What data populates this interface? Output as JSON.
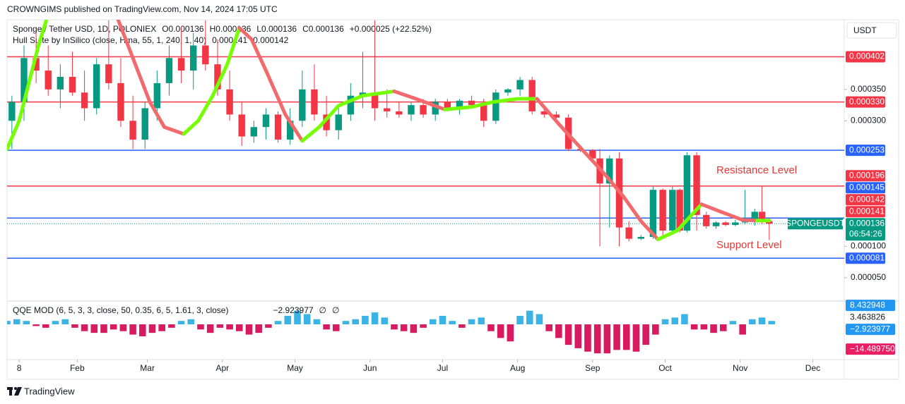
{
  "header": {
    "published": "CROWNGIMS published on TradingView.com, Nov 14, 2024 17:05 UTC",
    "footer": "TradingView"
  },
  "chart_data": {
    "type": "candlestick",
    "title": "Sponge / Tether USD, 1D, POLONIEX",
    "ohlc_text": [
      "O0.000136",
      "H0.000136",
      "L0.000136",
      "C0.000136",
      "+0.000025 (+22.52%)"
    ],
    "indicator": "Hull Suite by InSilico (close, Hma, 55, 1, 240, 1, 40)",
    "indicator_values": [
      "0.000141",
      "0.000142"
    ],
    "currency": "USDT",
    "symbol_badge": "SPONGEUSDT",
    "countdown": "06:54:26",
    "annotations": [
      "Resistance Level",
      "Support Level"
    ],
    "up_color": "#089981",
    "down_color": "#f23645",
    "xlim": [
      3,
      349
    ],
    "xticks": [
      {
        "value": 8,
        "label": "8"
      },
      {
        "value": 32,
        "label": "Feb"
      },
      {
        "value": 61,
        "label": "Mar"
      },
      {
        "value": 92,
        "label": "Apr"
      },
      {
        "value": 122,
        "label": "May"
      },
      {
        "value": 153,
        "label": "Jun"
      },
      {
        "value": 183,
        "label": "Jul"
      },
      {
        "value": 214,
        "label": "Aug"
      },
      {
        "value": 245,
        "label": "Sep"
      },
      {
        "value": 275,
        "label": "Oct"
      },
      {
        "value": 306,
        "label": "Nov"
      },
      {
        "value": 336,
        "label": "Dec"
      }
    ],
    "ylim": [
      1.5e-05,
      0.000461
    ],
    "yticks": [
      {
        "value": 5e-05,
        "label": "0.000050"
      },
      {
        "value": 0.0001,
        "label": "0.000100"
      },
      {
        "value": 0.0003,
        "label": "0.000300"
      },
      {
        "value": 0.00035,
        "label": "0.000350"
      }
    ],
    "x": [
      5,
      10,
      15,
      20,
      25,
      30,
      35,
      40,
      45,
      50,
      55,
      60,
      65,
      70,
      75,
      80,
      85,
      90,
      95,
      100,
      105,
      110,
      115,
      120,
      125,
      130,
      135,
      140,
      145,
      150,
      155,
      160,
      165,
      170,
      175,
      180,
      185,
      190,
      195,
      200,
      205,
      210,
      215,
      220,
      225,
      230,
      235,
      240,
      245,
      248,
      252,
      256,
      260,
      265,
      270,
      274,
      278,
      281,
      284,
      288,
      292,
      296,
      300,
      304,
      308,
      312,
      315,
      318
    ],
    "open": [
      0.0003,
      0.00033,
      0.0004,
      0.00038,
      0.00035,
      0.00037,
      0.000345,
      0.00032,
      0.00039,
      0.00036,
      0.0003,
      0.00027,
      0.00032,
      0.00036,
      0.0004,
      0.00038,
      0.00042,
      0.00039,
      0.00035,
      0.00031,
      0.000275,
      0.00029,
      0.00031,
      0.00027,
      0.0003,
      0.00035,
      0.00031,
      0.000285,
      0.00031,
      0.00034,
      0.000345,
      0.00032,
      0.000315,
      0.00031,
      0.000325,
      0.00031,
      0.00033,
      0.000318,
      0.000332,
      0.000325,
      0.0003,
      0.000345,
      0.00035,
      0.000365,
      0.000315,
      0.00031,
      0.000305,
      0.000255,
      0.000253,
      0.00024,
      0.0002,
      0.00024,
      0.00013,
      0.000112,
      0.000115,
      0.00019,
      0.000125,
      0.00019,
      0.000125,
      0.000245,
      0.00015,
      0.000132,
      0.000138,
      0.000134,
      0.000138,
      0.00014,
      0.000155,
      0.00014
    ],
    "high": [
      0.00034,
      0.00042,
      0.00044,
      0.00042,
      0.00039,
      0.00041,
      0.00038,
      0.0004,
      0.00046,
      0.0004,
      0.00034,
      0.00033,
      0.00038,
      0.00042,
      0.00045,
      0.00044,
      0.00046,
      0.00043,
      0.00038,
      0.00033,
      0.0003,
      0.00032,
      0.000315,
      0.00032,
      0.00038,
      0.00039,
      0.00034,
      0.00032,
      0.00036,
      0.00041,
      0.00046,
      0.00035,
      0.00033,
      0.00033,
      0.000335,
      0.000335,
      0.000335,
      0.000335,
      0.00034,
      0.000335,
      0.00035,
      0.000352,
      0.00037,
      0.00037,
      0.00032,
      0.000315,
      0.00031,
      0.000258,
      0.000255,
      0.000255,
      0.000245,
      0.00025,
      0.00014,
      0.000118,
      0.000195,
      0.000192,
      0.000195,
      0.000192,
      0.00025,
      0.00025,
      0.000155,
      0.00014,
      0.00014,
      0.000142,
      0.00019,
      0.00016,
      0.000195,
      0.000145
    ],
    "low": [
      0.000255,
      0.0003,
      0.00036,
      0.00034,
      0.00032,
      0.00034,
      0.0003,
      0.00031,
      0.00035,
      0.00029,
      0.000255,
      0.000255,
      0.0003,
      0.00034,
      0.00036,
      0.00035,
      0.00038,
      0.00034,
      0.0003,
      0.00026,
      0.000265,
      0.00027,
      0.000265,
      0.000262,
      0.00029,
      0.0003,
      0.000275,
      0.00027,
      0.0003,
      0.00032,
      0.0003,
      0.000305,
      0.000305,
      0.0003,
      0.000305,
      0.0003,
      0.000315,
      0.00031,
      0.00032,
      0.00029,
      0.000295,
      0.00034,
      0.00034,
      0.00031,
      0.000305,
      0.0003,
      0.000252,
      0.00025,
      0.000235,
      0.0001,
      0.00013,
      0.0001,
      0.000108,
      0.00011,
      0.000112,
      0.000115,
      0.000122,
      0.000122,
      0.000122,
      0.000125,
      0.000128,
      0.000128,
      0.000132,
      0.000132,
      0.000135,
      0.000133,
      0.000135,
      0.00011
    ],
    "close": [
      0.00033,
      0.0004,
      0.00038,
      0.00035,
      0.00037,
      0.000345,
      0.00032,
      0.00039,
      0.00036,
      0.0003,
      0.00027,
      0.00032,
      0.00036,
      0.0004,
      0.00038,
      0.00042,
      0.00039,
      0.00035,
      0.00031,
      0.000275,
      0.00029,
      0.00031,
      0.00027,
      0.0003,
      0.00035,
      0.00031,
      0.000285,
      0.00031,
      0.00034,
      0.000345,
      0.00032,
      0.000315,
      0.00031,
      0.000325,
      0.00031,
      0.00033,
      0.000318,
      0.000332,
      0.000325,
      0.0003,
      0.000345,
      0.00035,
      0.000365,
      0.000315,
      0.00031,
      0.000305,
      0.000255,
      0.000253,
      0.00024,
      0.0002,
      0.00024,
      0.00013,
      0.000112,
      0.000115,
      0.00019,
      0.000125,
      0.00019,
      0.000125,
      0.000245,
      0.00015,
      0.000132,
      0.000138,
      0.000134,
      0.000138,
      0.00014,
      0.000155,
      0.00014,
      0.000136
    ],
    "hull": {
      "name": "Hull Suite",
      "rise_color": "#76ff03",
      "fall_color": "#f26a6c",
      "x": [
        3,
        8,
        12,
        16,
        20,
        34,
        48,
        55,
        62,
        68,
        76,
        82,
        88,
        94,
        99,
        104,
        110,
        118,
        125,
        132,
        140,
        150,
        163,
        172,
        184,
        195,
        204,
        214,
        222,
        231,
        240,
        250,
        258,
        265,
        272,
        280,
        290,
        298,
        307,
        313,
        318
      ],
      "values": [
        0.000255,
        0.0003,
        0.00036,
        0.00042,
        0.00047,
        null,
        0.00047,
        0.0004,
        0.00033,
        0.00029,
        0.000279,
        0.0003,
        0.00034,
        0.00039,
        0.000448,
        0.00043,
        0.00038,
        0.00031,
        0.000268,
        0.00029,
        0.000324,
        0.00034,
        0.000347,
        0.000335,
        0.000318,
        0.000322,
        0.00033,
        0.000335,
        0.000335,
        0.000295,
        0.000257,
        0.000215,
        0.000178,
        0.00014,
        0.000111,
        0.000125,
        0.000167,
        0.000155,
        0.000142,
        0.000141,
        0.000141
      ]
    },
    "price_labels": [
      {
        "value": 0.000402,
        "label": "0.000402",
        "color": "#f23645",
        "line": true
      },
      {
        "value": 0.00033,
        "label": "0.000330",
        "color": "#f23645",
        "line": true
      },
      {
        "value": 0.000253,
        "label": "0.000253",
        "color": "#2962ff",
        "line": true
      },
      {
        "value": 0.000196,
        "label": "0.000196",
        "color": "#f23645",
        "line": true
      },
      {
        "value": 0.000145,
        "label": "0.000145",
        "color": "#2962ff",
        "line": true
      },
      {
        "value": 0.000142,
        "label": "0.000142",
        "color": "#f23645",
        "line": false
      },
      {
        "value": 0.000141,
        "label": "0.000141",
        "color": "#f23645",
        "line": false
      },
      {
        "value": 0.000136,
        "label": "0.000136",
        "color": "#089981",
        "line": false
      },
      {
        "value": 8.1e-05,
        "label": "0.000081",
        "color": "#2962ff",
        "line": true
      }
    ],
    "oscillator": {
      "type": "bar",
      "title": "QQE MOD (6, 5, 3, 3, close, 50, 0.35, 6, 5, 1.61, 3, close)",
      "legend_values": [
        "−2.923977",
        "∅",
        "∅"
      ],
      "up_color": "#3bb3e4",
      "down_color": "#d81b60",
      "ylim": [
        -19,
        12
      ],
      "x": [
        3,
        7,
        11,
        15,
        19,
        23,
        27,
        31,
        35,
        39,
        43,
        47,
        51,
        55,
        59,
        63,
        67,
        71,
        75,
        79,
        83,
        87,
        91,
        95,
        99,
        103,
        107,
        111,
        115,
        119,
        123,
        127,
        131,
        135,
        139,
        143,
        147,
        151,
        155,
        159,
        163,
        167,
        171,
        175,
        179,
        183,
        187,
        191,
        195,
        199,
        203,
        207,
        211,
        215,
        219,
        223,
        227,
        231,
        235,
        239,
        243,
        247,
        251,
        255,
        259,
        263,
        267,
        271,
        275,
        279,
        283,
        287,
        291,
        295,
        299,
        303,
        307,
        311,
        315,
        319
      ],
      "values": [
        2,
        3,
        2,
        -1,
        -2,
        2,
        3,
        -2,
        -4,
        -5,
        -5,
        -3,
        -4,
        -6,
        -7,
        -5,
        -4,
        -2,
        2,
        3,
        -3,
        -5,
        -2,
        -3,
        -4,
        -6,
        -5,
        -2,
        2,
        5,
        8,
        6,
        3,
        -3,
        -4,
        2,
        3,
        5,
        7,
        4,
        -3,
        -4,
        -5,
        -2,
        3,
        5,
        2,
        -2,
        3,
        4,
        -4,
        -8,
        -10,
        5,
        8,
        6,
        -4,
        -8,
        -12,
        -14,
        -16,
        -17,
        -17,
        -15,
        -15,
        -16,
        -12,
        -6,
        3,
        4,
        6,
        -3,
        -3,
        -5,
        -4,
        2,
        -6,
        3,
        4,
        2
      ],
      "value_badges": [
        {
          "value": 8.432948,
          "label": "8.432948",
          "color": "#2196f3"
        },
        {
          "value": 3.463826,
          "label": "3.463826",
          "color": null
        },
        {
          "value": -2.923977,
          "label": "−2.923977",
          "color": "#2196f3"
        },
        {
          "value": -14.48975,
          "label": "−14.489750",
          "color": "#e91e63"
        }
      ]
    }
  }
}
